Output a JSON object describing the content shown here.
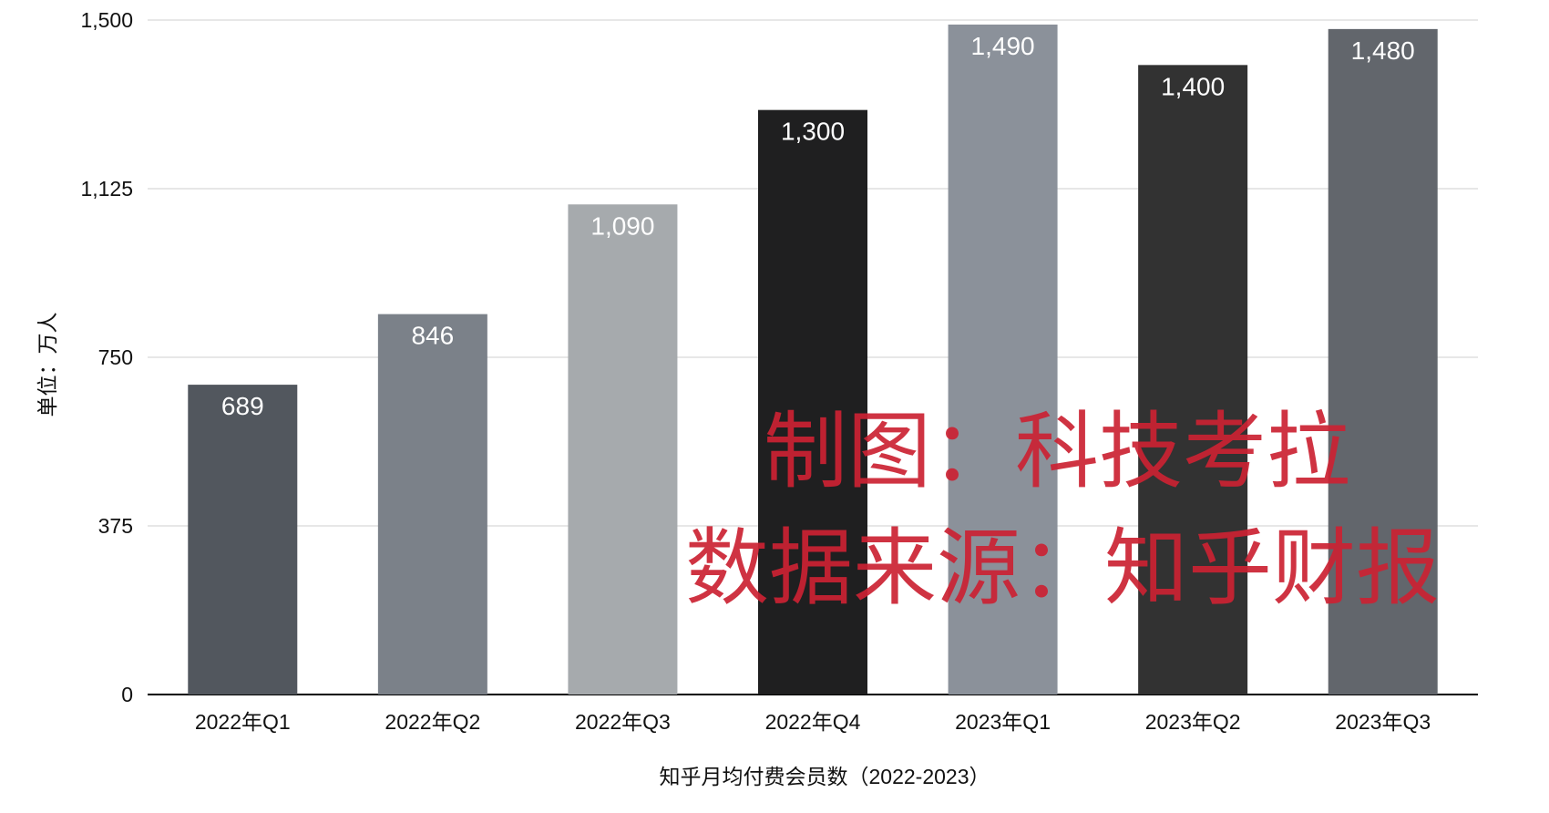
{
  "chart_data": {
    "type": "bar",
    "title": "",
    "xlabel": "知乎月均付费会员数（2022-2023）",
    "ylabel": "单位：万人",
    "ylim": [
      0,
      1500
    ],
    "yticks": [
      0,
      375,
      750,
      1125,
      1500
    ],
    "ytick_labels": [
      "0",
      "375",
      "750",
      "1,125",
      "1,500"
    ],
    "categories": [
      "2022年Q1",
      "2022年Q2",
      "2022年Q3",
      "2022年Q4",
      "2023年Q1",
      "2023年Q2",
      "2023年Q3"
    ],
    "values": [
      689,
      846,
      1090,
      1300,
      1490,
      1400,
      1480
    ],
    "value_labels": [
      "689",
      "846",
      "1,090",
      "1,300",
      "1,490",
      "1,400",
      "1,480"
    ],
    "bar_colors": [
      "#52575e",
      "#7b8189",
      "#a6aaad",
      "#1f1f20",
      "#8b919a",
      "#323232",
      "#62666c"
    ],
    "grid": true,
    "legend": "none"
  },
  "watermark": {
    "line1": "制图：科技考拉",
    "line2": "数据来源：知乎财报",
    "color": "#cc2233"
  }
}
